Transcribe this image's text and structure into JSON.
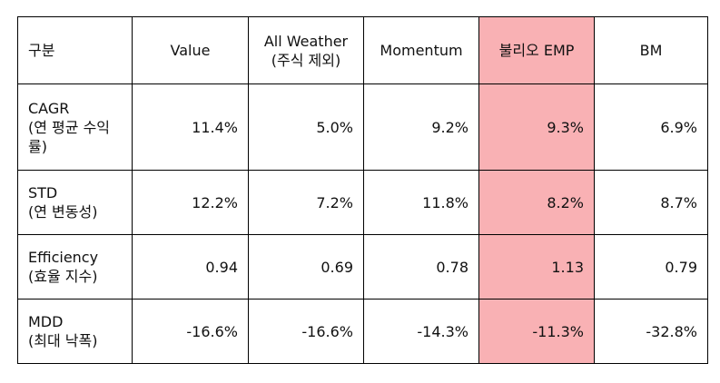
{
  "table": {
    "headers": [
      {
        "lines": [
          "구분"
        ]
      },
      {
        "lines": [
          "Value"
        ]
      },
      {
        "lines": [
          "All Weather",
          "(주식 제외)"
        ]
      },
      {
        "lines": [
          "Momentum"
        ]
      },
      {
        "lines": [
          "불리오 EMP"
        ]
      },
      {
        "lines": [
          "BM"
        ]
      }
    ],
    "highlight_color": "#f9b1b4",
    "highlight_column": "불리오 EMP",
    "rows": [
      {
        "label": [
          "CAGR",
          "(연 평균 수익",
          "률)"
        ],
        "values": [
          "11.4%",
          "5.0%",
          "9.2%",
          "9.3%",
          "6.9%"
        ]
      },
      {
        "label": [
          "STD",
          "(연 변동성)"
        ],
        "values": [
          "12.2%",
          "7.2%",
          "11.8%",
          "8.2%",
          "8.7%"
        ]
      },
      {
        "label": [
          "Efficiency",
          "(효율 지수)"
        ],
        "values": [
          "0.94",
          "0.69",
          "0.78",
          "1.13",
          "0.79"
        ]
      },
      {
        "label": [
          "MDD",
          "(최대 낙폭)"
        ],
        "values": [
          "-16.6%",
          "-16.6%",
          "-14.3%",
          "-11.3%",
          "-32.8%"
        ]
      }
    ]
  }
}
